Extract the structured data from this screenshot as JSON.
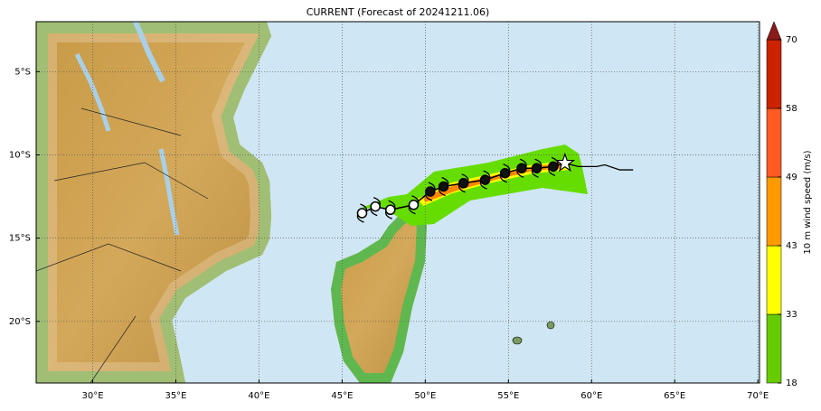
{
  "map": {
    "title": "CURRENT (Forecast of 20241211.06)",
    "xlim": [
      26.6,
      70.1
    ],
    "ylim": [
      -23.7,
      -2
    ],
    "xticks": [
      {
        "value": 30,
        "label": "30°E"
      },
      {
        "value": 35,
        "label": "35°E"
      },
      {
        "value": 40,
        "label": "40°E"
      },
      {
        "value": 45,
        "label": "45°E"
      },
      {
        "value": 50,
        "label": "50°E"
      },
      {
        "value": 55,
        "label": "55°E"
      },
      {
        "value": 60,
        "label": "60°E"
      },
      {
        "value": 65,
        "label": "65°E"
      },
      {
        "value": 70,
        "label": "70°E"
      }
    ],
    "yticks": [
      {
        "value": -5,
        "label": "5°S"
      },
      {
        "value": -10,
        "label": "10°S"
      },
      {
        "value": -15,
        "label": "15°S"
      },
      {
        "value": -20,
        "label": "20°S"
      }
    ],
    "grid": true
  },
  "track": {
    "lon": [
      58.4,
      57.7,
      56.7,
      55.8,
      54.8,
      53.6,
      52.3,
      51.1,
      50.3,
      49.3,
      47.9,
      47.0,
      46.2
    ],
    "lat": [
      -10.5,
      -10.7,
      -10.8,
      -10.8,
      -11.1,
      -11.5,
      -11.7,
      -11.9,
      -12.2,
      -13.0,
      -13.3,
      -13.1,
      -13.5
    ]
  },
  "past_track": {
    "lon": [
      58.4,
      59.2,
      60.3,
      60.8,
      61.7,
      62.5
    ],
    "lat": [
      -10.5,
      -10.7,
      -10.7,
      -10.6,
      -10.9,
      -10.9
    ]
  },
  "colorbar": {
    "label": "10 m wind speed (m/s)",
    "ticks": [
      18,
      33,
      43,
      49,
      58,
      70
    ],
    "colors": [
      "#66cc00",
      "#ffff00",
      "#ff9900",
      "#ff5a22",
      "#cc2200"
    ],
    "extend_color": "#8b1a1a"
  }
}
